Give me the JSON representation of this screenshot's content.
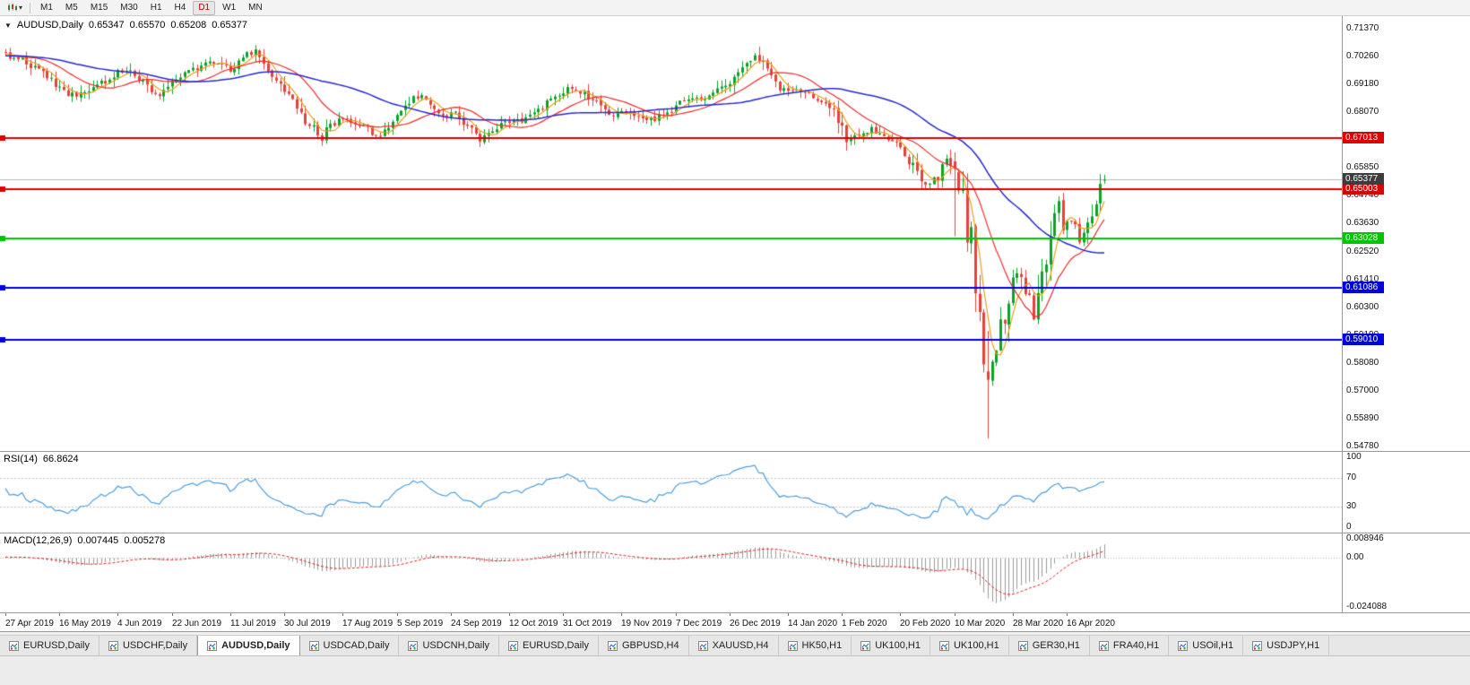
{
  "icons": {
    "dropdown_caret": "▾",
    "collapse_triangle": "▼"
  },
  "toolbar": {
    "timeframes": [
      {
        "label": "M1",
        "active": false
      },
      {
        "label": "M5",
        "active": false
      },
      {
        "label": "M15",
        "active": false
      },
      {
        "label": "M30",
        "active": false
      },
      {
        "label": "H1",
        "active": false
      },
      {
        "label": "H4",
        "active": false
      },
      {
        "label": "D1",
        "active": true
      },
      {
        "label": "W1",
        "active": false
      },
      {
        "label": "MN",
        "active": false
      }
    ]
  },
  "main_chart": {
    "legend": {
      "symbol": "AUDUSD,Daily",
      "open": "0.65347",
      "high": "0.65570",
      "low": "0.65208",
      "close": "0.65377"
    },
    "y_axis": {
      "top_price": 0.7137,
      "bottom_price": 0.5478,
      "labels": [
        "0.71370",
        "0.70260",
        "0.69180",
        "0.68070",
        "0.66960",
        "0.65850",
        "0.64740",
        "0.63630",
        "0.62520",
        "0.61410",
        "0.60300",
        "0.59190",
        "0.58080",
        "0.57000",
        "0.55890",
        "0.54780"
      ]
    },
    "horizontal_lines": [
      {
        "price": 0.67013,
        "label": "0.67013",
        "color": "#dd0000"
      },
      {
        "price": 0.65003,
        "label": "0.65003",
        "color": "#dd0000"
      },
      {
        "price": 0.63028,
        "label": "0.63028",
        "color": "#00c400"
      },
      {
        "price": 0.61086,
        "label": "0.61086",
        "color": "#0000dd"
      },
      {
        "price": 0.5901,
        "label": "0.59010",
        "color": "#0000dd"
      }
    ],
    "current_price": {
      "price": 0.65377,
      "label": "0.65377",
      "line_color": "#b8b8b8",
      "tag_color": "#3c3c3c"
    },
    "x_axis_dates": [
      "27 Apr 2019",
      "16 May 2019",
      "4 Jun 2019",
      "22 Jun 2019",
      "11 Jul 2019",
      "30 Jul 2019",
      "17 Aug 2019",
      "5 Sep 2019",
      "24 Sep 2019",
      "12 Oct 2019",
      "31 Oct 2019",
      "19 Nov 2019",
      "7 Dec 2019",
      "26 Dec 2019",
      "14 Jan 2020",
      "1 Feb 2020",
      "20 Feb 2020",
      "10 Mar 2020",
      "28 Mar 2020",
      "16 Apr 2020"
    ],
    "candle_colors": {
      "up": "#0aa32a",
      "down": "#e6413a"
    },
    "moving_averages": [
      {
        "name": "ma-fast",
        "period": 5,
        "color": "#e8a11c"
      },
      {
        "name": "ma-medium",
        "period": 15,
        "color": "#ee2c2c"
      },
      {
        "name": "ma-slow",
        "period": 40,
        "color": "#2929cf"
      }
    ],
    "bar_count": 265,
    "price_path_anchors": [
      [
        0,
        0.7032
      ],
      [
        2,
        0.701
      ],
      [
        4,
        0.7022
      ],
      [
        6,
        0.699
      ],
      [
        9,
        0.6962
      ],
      [
        11,
        0.694
      ],
      [
        13,
        0.6895
      ],
      [
        15,
        0.688
      ],
      [
        17,
        0.6865
      ],
      [
        19,
        0.6885
      ],
      [
        21,
        0.6905
      ],
      [
        23,
        0.692
      ],
      [
        25,
        0.693
      ],
      [
        27,
        0.6965
      ],
      [
        29,
        0.6975
      ],
      [
        31,
        0.6945
      ],
      [
        33,
        0.692
      ],
      [
        35,
        0.688
      ],
      [
        37,
        0.686
      ],
      [
        40,
        0.6925
      ],
      [
        43,
        0.6955
      ],
      [
        46,
        0.698
      ],
      [
        49,
        0.7
      ],
      [
        52,
        0.7005
      ],
      [
        54,
        0.6975
      ],
      [
        56,
        0.701
      ],
      [
        58,
        0.704
      ],
      [
        60,
        0.7045
      ],
      [
        62,
        0.7
      ],
      [
        64,
        0.695
      ],
      [
        66,
        0.6905
      ],
      [
        68,
        0.687
      ],
      [
        70,
        0.682
      ],
      [
        72,
        0.676
      ],
      [
        74,
        0.6745
      ],
      [
        76,
        0.67
      ],
      [
        78,
        0.6755
      ],
      [
        80,
        0.6775
      ],
      [
        82,
        0.678
      ],
      [
        84,
        0.6765
      ],
      [
        86,
        0.6745
      ],
      [
        88,
        0.6725
      ],
      [
        90,
        0.6715
      ],
      [
        92,
        0.674
      ],
      [
        94,
        0.681
      ],
      [
        96,
        0.684
      ],
      [
        98,
        0.686
      ],
      [
        100,
        0.687
      ],
      [
        102,
        0.6845
      ],
      [
        104,
        0.6815
      ],
      [
        106,
        0.679
      ],
      [
        108,
        0.68
      ],
      [
        110,
        0.6765
      ],
      [
        112,
        0.6735
      ],
      [
        114,
        0.67
      ],
      [
        116,
        0.672
      ],
      [
        118,
        0.675
      ],
      [
        120,
        0.6775
      ],
      [
        122,
        0.6768
      ],
      [
        124,
        0.6775
      ],
      [
        126,
        0.679
      ],
      [
        128,
        0.6815
      ],
      [
        130,
        0.684
      ],
      [
        132,
        0.6865
      ],
      [
        134,
        0.689
      ],
      [
        136,
        0.69
      ],
      [
        138,
        0.6885
      ],
      [
        140,
        0.6865
      ],
      [
        142,
        0.6845
      ],
      [
        144,
        0.682
      ],
      [
        146,
        0.6795
      ],
      [
        148,
        0.681
      ],
      [
        150,
        0.6795
      ],
      [
        152,
        0.678
      ],
      [
        154,
        0.677
      ],
      [
        156,
        0.6778
      ],
      [
        158,
        0.6792
      ],
      [
        160,
        0.6815
      ],
      [
        162,
        0.684
      ],
      [
        164,
        0.6855
      ],
      [
        166,
        0.6862
      ],
      [
        168,
        0.6852
      ],
      [
        170,
        0.6872
      ],
      [
        172,
        0.69
      ],
      [
        174,
        0.693
      ],
      [
        176,
        0.6962
      ],
      [
        178,
        0.7
      ],
      [
        180,
        0.703
      ],
      [
        182,
        0.6995
      ],
      [
        184,
        0.6945
      ],
      [
        186,
        0.6905
      ],
      [
        188,
        0.69
      ],
      [
        190,
        0.6895
      ],
      [
        192,
        0.688
      ],
      [
        194,
        0.6862
      ],
      [
        196,
        0.685
      ],
      [
        198,
        0.683
      ],
      [
        200,
        0.678
      ],
      [
        202,
        0.669
      ],
      [
        204,
        0.6705
      ],
      [
        206,
        0.6725
      ],
      [
        208,
        0.6742
      ],
      [
        210,
        0.6712
      ],
      [
        212,
        0.669
      ],
      [
        214,
        0.668
      ],
      [
        216,
        0.6625
      ],
      [
        218,
        0.6595
      ],
      [
        220,
        0.654
      ],
      [
        222,
        0.6515
      ],
      [
        224,
        0.6548
      ],
      [
        226,
        0.662
      ],
      [
        228,
        0.658
      ],
      [
        229,
        0.65
      ],
      [
        230,
        0.649
      ],
      [
        231,
        0.629
      ],
      [
        232,
        0.634
      ],
      [
        233,
        0.612
      ],
      [
        234,
        0.599
      ],
      [
        235,
        0.578
      ],
      [
        236,
        0.5743
      ],
      [
        237,
        0.58
      ],
      [
        238,
        0.583
      ],
      [
        239,
        0.597
      ],
      [
        240,
        0.596
      ],
      [
        241,
        0.606
      ],
      [
        242,
        0.617
      ],
      [
        243,
        0.617
      ],
      [
        244,
        0.614
      ],
      [
        245,
        0.609
      ],
      [
        246,
        0.606
      ],
      [
        247,
        0.599
      ],
      [
        248,
        0.608
      ],
      [
        249,
        0.616
      ],
      [
        250,
        0.623
      ],
      [
        251,
        0.634
      ],
      [
        252,
        0.638
      ],
      [
        253,
        0.644
      ],
      [
        254,
        0.632
      ],
      [
        255,
        0.636
      ],
      [
        256,
        0.636
      ],
      [
        257,
        0.634
      ],
      [
        258,
        0.628
      ],
      [
        259,
        0.632
      ],
      [
        260,
        0.637
      ],
      [
        261,
        0.639
      ],
      [
        262,
        0.646
      ],
      [
        263,
        0.651
      ],
      [
        264,
        0.65377
      ]
    ],
    "candle_overrides": {
      "228": [
        0.661,
        0.6646,
        0.6313,
        0.658
      ],
      "236": [
        0.5776,
        0.5937,
        0.551,
        0.5743
      ],
      "264": [
        0.65347,
        0.6557,
        0.65208,
        0.65377
      ]
    }
  },
  "rsi_panel": {
    "name": "RSI(14)",
    "value": "66.8624",
    "period": 14,
    "line_color": "#4f9edb",
    "levels": [
      {
        "value": 100,
        "label": "100"
      },
      {
        "value": 70,
        "label": "70"
      },
      {
        "value": 30,
        "label": "30"
      },
      {
        "value": 0,
        "label": "0"
      }
    ]
  },
  "macd_panel": {
    "name": "MACD(12,26,9)",
    "value_main": "0.007445",
    "value_signal": "0.005278",
    "params": [
      12,
      26,
      9
    ],
    "histogram_color": "#9a9a9a",
    "signal_color": "#dd2222",
    "axis_labels": [
      {
        "value": 0.008946,
        "label": "0.008946"
      },
      {
        "value": 0,
        "label": "0.00"
      },
      {
        "value": -0.024088,
        "label": "-0.024088"
      }
    ]
  },
  "tab_bar": {
    "active_index": 2,
    "tabs": [
      "EURUSD,Daily",
      "USDCHF,Daily",
      "AUDUSD,Daily",
      "USDCAD,Daily",
      "USDCNH,Daily",
      "EURUSD,Daily",
      "GBPUSD,H4",
      "XAUUSD,H4",
      "HK50,H1",
      "UK100,H1",
      "UK100,H1",
      "GER30,H1",
      "FRA40,H1",
      "USOil,H1",
      "USDJPY,H1"
    ]
  }
}
